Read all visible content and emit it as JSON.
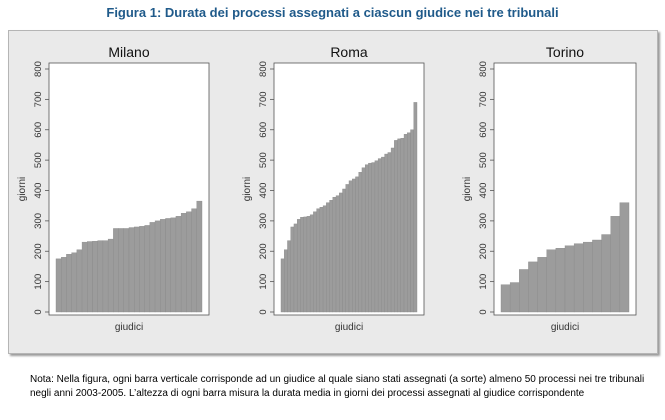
{
  "figure_title": "Figura 1: Durata dei processi assegnati a ciascun giudice nei tre tribunali",
  "note": "Nota: Nella figura, ogni barra verticale corrisponde ad un giudice al quale siano stati assegnati (a sorte) almeno 50 processi nei tre tribunali negli anni 2003-2005. L’altezza di ogni barra misura la durata media in giorni dei processi assegnati al giudice corrispondente",
  "colors": {
    "bar": "#9c9c9c",
    "panel_bg": "#eaeaea",
    "plot_bg": "#ffffff",
    "title": "#1f5a8a"
  },
  "chart_data": [
    {
      "type": "bar",
      "title": "Milano",
      "xlabel": "giudici",
      "ylabel": "giorni",
      "ylim": [
        0,
        800
      ],
      "yticks": [
        "0",
        "100",
        "200",
        "300",
        "400",
        "500",
        "600",
        "700",
        "800"
      ],
      "grid": false,
      "values": [
        175,
        180,
        190,
        195,
        205,
        230,
        232,
        233,
        235,
        235,
        240,
        275,
        275,
        275,
        278,
        280,
        282,
        285,
        295,
        300,
        305,
        308,
        310,
        315,
        325,
        330,
        340,
        365
      ]
    },
    {
      "type": "bar",
      "title": "Roma",
      "xlabel": "giudici",
      "ylabel": "giorni",
      "ylim": [
        0,
        800
      ],
      "yticks": [
        "0",
        "100",
        "200",
        "300",
        "400",
        "500",
        "600",
        "700",
        "800"
      ],
      "grid": false,
      "values": [
        175,
        205,
        235,
        280,
        290,
        305,
        312,
        313,
        315,
        320,
        330,
        340,
        345,
        350,
        360,
        368,
        378,
        383,
        392,
        405,
        420,
        432,
        438,
        445,
        460,
        475,
        485,
        490,
        492,
        498,
        505,
        510,
        520,
        525,
        540,
        565,
        570,
        572,
        585,
        590,
        600,
        690
      ]
    },
    {
      "type": "bar",
      "title": "Torino",
      "xlabel": "giudici",
      "ylabel": "giorni",
      "ylim": [
        0,
        800
      ],
      "yticks": [
        "0",
        "100",
        "200",
        "300",
        "400",
        "500",
        "600",
        "700",
        "800"
      ],
      "grid": false,
      "values": [
        90,
        97,
        140,
        165,
        180,
        205,
        210,
        218,
        225,
        230,
        237,
        255,
        315,
        360
      ]
    }
  ]
}
